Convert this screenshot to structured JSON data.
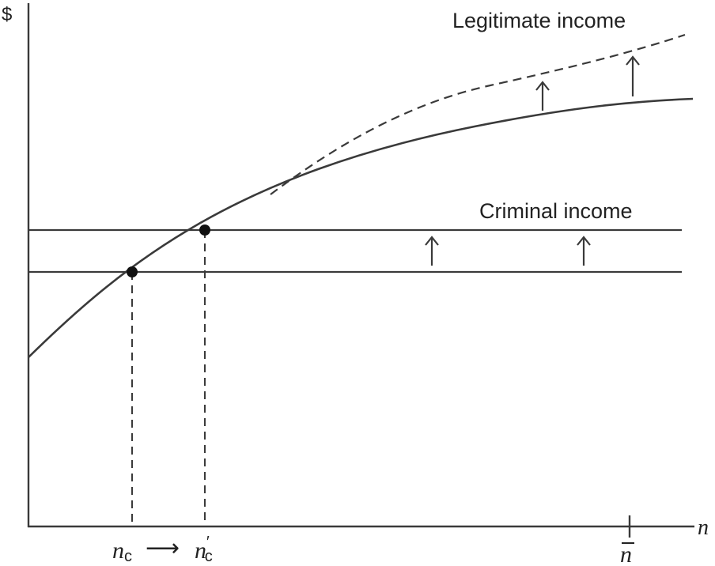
{
  "chart_data": {
    "type": "line",
    "title": "",
    "ylabel": "$",
    "xlabel": "n",
    "series": [
      {
        "name": "Legitimate income",
        "style": "solid",
        "color": "#3a3a3a"
      },
      {
        "name": "",
        "style": "dashed",
        "color": "#3a3a3a"
      },
      {
        "name": "Criminal income",
        "style": "solid",
        "color": "#3a3a3a"
      },
      {
        "name": "",
        "style": "solid",
        "color": "#3a3a3a"
      }
    ],
    "x_ticks": {
      "n_c": {
        "base": "n",
        "sub": "c",
        "prime": ""
      },
      "n_c_prime": {
        "base": "n",
        "sub": "c",
        "prime": "′"
      },
      "n_bar": {
        "base": "n",
        "bar": true
      }
    },
    "shift_arrow": "⟶",
    "points": [
      "n_c",
      "n_c_prime"
    ],
    "annotations": [
      "upward shift arrows on legitimate income curve",
      "upward shift arrows on criminal income line"
    ],
    "grid": false,
    "legend": "none"
  },
  "labels": {
    "y_axis": "$",
    "x_axis": "n",
    "legit": "Legitimate income",
    "criminal": "Criminal income",
    "nc_base": "n",
    "nc_sub": "c",
    "ncp_base": "n",
    "ncp_sub": "c",
    "ncp_prime": "′",
    "arrow": "⟶",
    "nbar": "n"
  },
  "colors": {
    "ink": "#3a3a3a",
    "text": "#222222",
    "background": "#ffffff"
  }
}
